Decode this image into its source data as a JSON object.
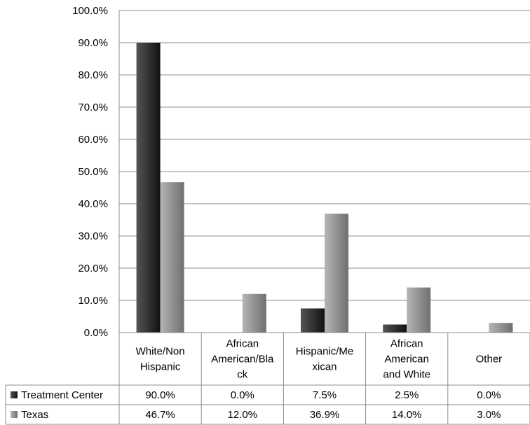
{
  "chart_data": {
    "type": "bar",
    "categories": [
      [
        "White/Non",
        "Hispanic"
      ],
      [
        "African",
        "American/Bla",
        "ck"
      ],
      [
        "Hispanic/Me",
        "xican"
      ],
      [
        "African",
        "American",
        "and White"
      ],
      [
        "Other"
      ]
    ],
    "series": [
      {
        "name": "Treatment Center",
        "values": [
          90.0,
          0.0,
          7.5,
          2.5,
          0.0
        ],
        "labels": [
          "90.0%",
          "0.0%",
          "7.5%",
          "2.5%",
          "0.0%"
        ]
      },
      {
        "name": "Texas",
        "values": [
          46.7,
          12.0,
          36.9,
          14.0,
          3.0
        ],
        "labels": [
          "46.7%",
          "12.0%",
          "36.9%",
          "14.0%",
          "3.0%"
        ]
      }
    ],
    "ylim": [
      0,
      100
    ],
    "yticks": [
      "0.0%",
      "10.0%",
      "20.0%",
      "30.0%",
      "40.0%",
      "50.0%",
      "60.0%",
      "70.0%",
      "80.0%",
      "90.0%",
      "100.0%"
    ],
    "grid": true,
    "legend": "data-table",
    "colors": {
      "Treatment Center": [
        "#555555",
        "#111111"
      ],
      "Texas": [
        "#b5b5b5",
        "#6f6f6f"
      ]
    }
  }
}
